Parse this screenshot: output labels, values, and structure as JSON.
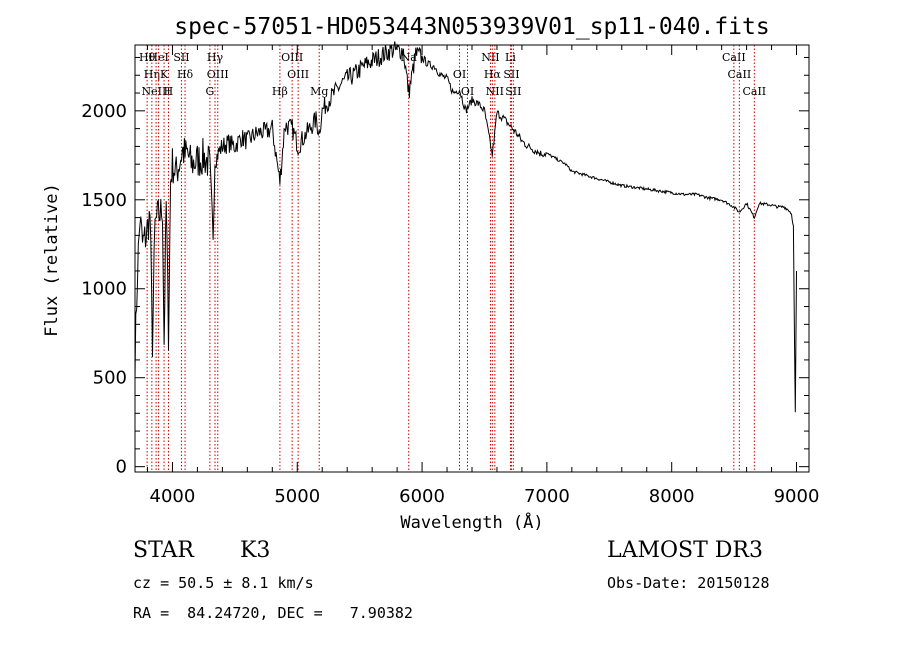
{
  "chart_data": {
    "type": "line",
    "title": "spec-57051-HD053443N053939V01_sp11-040.fits",
    "xlabel": "Wavelength (Å)",
    "ylabel": "Flux (relative)",
    "xlim": [
      3700,
      9100
    ],
    "ylim": [
      -30,
      2370
    ],
    "xticks": [
      4000,
      5000,
      6000,
      7000,
      8000,
      9000
    ],
    "yticks": [
      0,
      500,
      1000,
      1500,
      2000
    ],
    "series": [
      {
        "name": "flux",
        "x": [
          3700,
          3720,
          3740,
          3760,
          3790,
          3820,
          3840,
          3860,
          3880,
          3900,
          3920,
          3933,
          3950,
          3968,
          3985,
          4000,
          4030,
          4060,
          4080,
          4101,
          4120,
          4150,
          4200,
          4250,
          4300,
          4326,
          4340,
          4380,
          4400,
          4450,
          4500,
          4550,
          4600,
          4650,
          4700,
          4750,
          4800,
          4861,
          4900,
          4960,
          5007,
          5050,
          5100,
          5150,
          5175,
          5200,
          5250,
          5300,
          5350,
          5400,
          5450,
          5500,
          5550,
          5600,
          5650,
          5700,
          5750,
          5800,
          5850,
          5893,
          5950,
          6000,
          6050,
          6100,
          6150,
          6200,
          6250,
          6300,
          6350,
          6400,
          6450,
          6500,
          6563,
          6600,
          6650,
          6700,
          6750,
          6800,
          6850,
          6900,
          6950,
          7000,
          7050,
          7100,
          7150,
          7200,
          7300,
          7400,
          7500,
          7600,
          7700,
          7800,
          7900,
          8000,
          8100,
          8200,
          8300,
          8400,
          8498,
          8542,
          8600,
          8662,
          8700,
          8800,
          8850,
          8900,
          8940,
          8960,
          8975,
          8990,
          9000
        ],
        "y": [
          600,
          1100,
          1400,
          1250,
          1300,
          1420,
          700,
          1350,
          1400,
          1420,
          1450,
          700,
          1480,
          750,
          1600,
          1700,
          1650,
          1720,
          1780,
          1750,
          1760,
          1700,
          1720,
          1740,
          1700,
          1300,
          1720,
          1780,
          1800,
          1820,
          1800,
          1850,
          1830,
          1860,
          1880,
          1880,
          1900,
          1600,
          1920,
          1900,
          1800,
          1850,
          1900,
          1950,
          1880,
          2000,
          2060,
          2100,
          2150,
          2180,
          2200,
          2230,
          2260,
          2280,
          2300,
          2320,
          2340,
          2340,
          2340,
          2100,
          2320,
          2300,
          2260,
          2250,
          2200,
          2180,
          2100,
          2120,
          2000,
          2060,
          2040,
          2000,
          1750,
          1990,
          1960,
          1920,
          1880,
          1830,
          1800,
          1780,
          1760,
          1760,
          1740,
          1720,
          1700,
          1660,
          1640,
          1620,
          1600,
          1580,
          1570,
          1560,
          1550,
          1540,
          1530,
          1530,
          1510,
          1500,
          1460,
          1430,
          1480,
          1400,
          1480,
          1470,
          1460,
          1460,
          1440,
          1420,
          1350,
          300,
          1100
        ]
      }
    ],
    "line_markers": [
      {
        "x": 3797,
        "label": "Hθ"
      },
      {
        "x": 3835,
        "label": "Hη"
      },
      {
        "x": 3869,
        "label": "NeIII"
      },
      {
        "x": 3889,
        "label": "HeI"
      },
      {
        "x": 3933,
        "label": "K"
      },
      {
        "x": 3968,
        "label": "H"
      },
      {
        "x": 4072,
        "label": "SII"
      },
      {
        "x": 4101,
        "label": "Hδ"
      },
      {
        "x": 4300,
        "label": "G"
      },
      {
        "x": 4341,
        "label": "Hγ"
      },
      {
        "x": 4363,
        "label": "OIII"
      },
      {
        "x": 4861,
        "label": "Hβ"
      },
      {
        "x": 4959,
        "label": "OIII"
      },
      {
        "x": 5007,
        "label": "OIII"
      },
      {
        "x": 5176,
        "label": "Mg"
      },
      {
        "x": 5893,
        "label": "Na"
      },
      {
        "x": 6300,
        "label": "OI"
      },
      {
        "x": 6364,
        "label": "OI"
      },
      {
        "x": 6548,
        "label": "NII"
      },
      {
        "x": 6563,
        "label": "Hα"
      },
      {
        "x": 6583,
        "label": "NII"
      },
      {
        "x": 6708,
        "label": "Li"
      },
      {
        "x": 6716,
        "label": "SII"
      },
      {
        "x": 6731,
        "label": "SII"
      },
      {
        "x": 8498,
        "label": "CaII"
      },
      {
        "x": 8542,
        "label": "CaII"
      },
      {
        "x": 8662,
        "label": "CaII"
      }
    ]
  },
  "info": {
    "class": "STAR",
    "subclass": "K3",
    "survey": "LAMOST DR3",
    "cz": "cz = 50.5 ± 8.1 km/s",
    "obs_date": "Obs-Date: 20150128",
    "radec": "RA =  84.24720, DEC =   7.90382"
  },
  "colors": {
    "axis": "#000000",
    "spectrum": "#000000",
    "marker": "#cc0000"
  }
}
